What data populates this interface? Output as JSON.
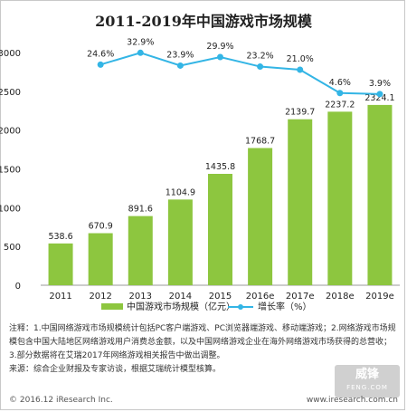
{
  "title": "2011-2019年中国游戏市场规模",
  "legend": {
    "bar_label": "中国游戏市场规模（亿元）",
    "line_label": "增长率（%）"
  },
  "notes": {
    "line1": "注释：1.中国网络游戏市场规模统计包括PC客户端游戏、PC浏览器端游戏、移动端游戏；2.网络游戏市场规模包含中国大陆地区网络游戏用户消费总金额，以及中国网络游戏企业在海外网络游戏市场获得的总营收；3.部分数据将在艾瑞2017年网络游戏相关报告中做出调整。",
    "line2": "来源：综合企业财报及专家访谈，根据艾瑞统计模型核算。"
  },
  "footer": {
    "copyright": "© 2016.12 iResearch Inc.",
    "website": "www.iresearch.com.cn"
  },
  "watermark": {
    "main": "威锋",
    "sub": "FENG.COM"
  },
  "colors": {
    "bar": "#8dc63f",
    "line": "#33b5e5",
    "axis": "#999999"
  },
  "chart_data": {
    "type": "bar",
    "categories": [
      "2011",
      "2012",
      "2013",
      "2014",
      "2015",
      "2016e",
      "2017e",
      "2018e",
      "2019e"
    ],
    "ylim": [
      0,
      3000
    ],
    "yticks": [
      0,
      500,
      1000,
      1500,
      2000,
      2500,
      3000
    ],
    "grid": false,
    "legend_position": "bottom",
    "series": [
      {
        "name": "中国游戏市场规模（亿元）",
        "type": "bar",
        "values": [
          538.6,
          670.9,
          891.6,
          1104.9,
          1435.8,
          1768.7,
          2139.7,
          2237.2,
          2324.1
        ],
        "labels": [
          "538.6",
          "670.9",
          "891.6",
          "1104.9",
          "1435.8",
          "1768.7",
          "2139.7",
          "2237.2",
          "2324.1"
        ]
      },
      {
        "name": "增长率（%）",
        "type": "line",
        "values": [
          null,
          24.6,
          32.9,
          23.9,
          29.9,
          23.2,
          21.0,
          4.6,
          3.9
        ],
        "labels": [
          "",
          "24.6%",
          "32.9%",
          "23.9%",
          "29.9%",
          "23.2%",
          "21.0%",
          "4.6%",
          "3.9%"
        ]
      }
    ]
  }
}
